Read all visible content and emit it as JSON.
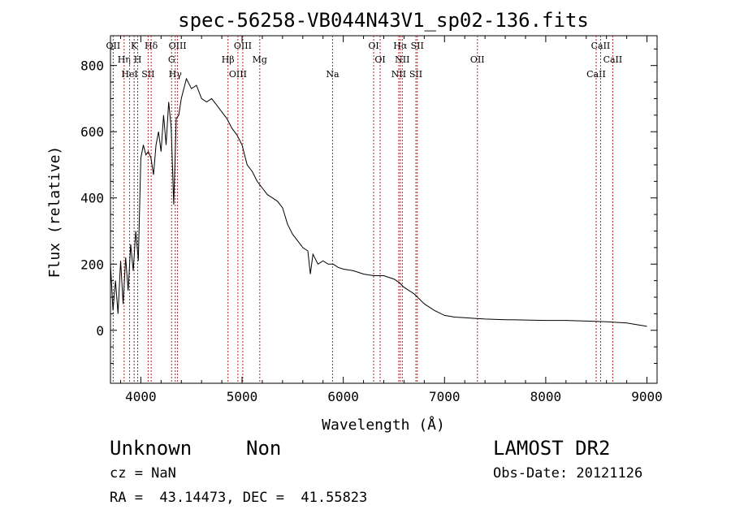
{
  "chart_data": {
    "type": "line",
    "title": "spec-56258-VB044N43V1_sp02-136.fits",
    "xlabel": "Wavelength (Å)",
    "ylabel": "Flux (relative)",
    "xlim": [
      3700,
      9100
    ],
    "ylim": [
      -160,
      890
    ],
    "x_ticks": [
      4000,
      5000,
      6000,
      7000,
      8000,
      9000
    ],
    "y_ticks": [
      0,
      200,
      400,
      600,
      800
    ],
    "x_tick_labels": [
      "4000",
      "5000",
      "6000",
      "7000",
      "8000",
      "9000"
    ],
    "y_tick_labels": [
      "0",
      "200",
      "400",
      "600",
      "800"
    ],
    "grid": false,
    "series": [
      {
        "x": [
          3700,
          3725,
          3750,
          3775,
          3800,
          3825,
          3850,
          3875,
          3900,
          3925,
          3950,
          3975,
          4000,
          4025,
          4050,
          4075,
          4100,
          4125,
          4150,
          4175,
          4200,
          4225,
          4250,
          4275,
          4300,
          4325,
          4350,
          4375,
          4400,
          4450,
          4500,
          4550,
          4600,
          4650,
          4700,
          4750,
          4800,
          4850,
          4900,
          4950,
          5000,
          5050,
          5100,
          5150,
          5200,
          5250,
          5300,
          5350,
          5400,
          5450,
          5500,
          5550,
          5600,
          5650,
          5675,
          5700,
          5750,
          5800,
          5850,
          5900,
          5950,
          6000,
          6100,
          6200,
          6300,
          6400,
          6500,
          6550,
          6600,
          6700,
          6800,
          6900,
          7000,
          7100,
          7200,
          7300,
          7400,
          7600,
          7800,
          8000,
          8200,
          8400,
          8600,
          8800,
          9000
        ],
        "values": [
          200,
          60,
          150,
          50,
          210,
          80,
          220,
          120,
          260,
          180,
          300,
          210,
          520,
          560,
          530,
          540,
          520,
          470,
          560,
          600,
          540,
          650,
          560,
          690,
          610,
          380,
          640,
          650,
          700,
          760,
          730,
          740,
          700,
          690,
          700,
          680,
          660,
          640,
          610,
          590,
          560,
          500,
          480,
          450,
          430,
          410,
          400,
          390,
          370,
          320,
          290,
          270,
          250,
          240,
          170,
          230,
          200,
          210,
          200,
          200,
          190,
          185,
          180,
          170,
          165,
          165,
          155,
          145,
          130,
          110,
          80,
          60,
          45,
          40,
          38,
          36,
          34,
          32,
          31,
          30,
          30,
          28,
          26,
          22,
          12
        ]
      }
    ],
    "line_labels": [
      {
        "x": 3727,
        "labels": [
          "OII"
        ]
      },
      {
        "x": 3835,
        "labels": [
          "Hη"
        ]
      },
      {
        "x": 3889,
        "labels": [
          "HeI"
        ]
      },
      {
        "x": 3934,
        "labels": [
          "K"
        ]
      },
      {
        "x": 3969,
        "labels": [
          "H"
        ]
      },
      {
        "x": 4072,
        "labels": [
          "SII"
        ]
      },
      {
        "x": 4102,
        "labels": [
          "Hδ"
        ]
      },
      {
        "x": 4304,
        "labels": [
          "G"
        ]
      },
      {
        "x": 4340,
        "labels": [
          "Hγ"
        ]
      },
      {
        "x": 4363,
        "labels": [
          "OIII"
        ]
      },
      {
        "x": 4861,
        "labels": [
          "Hβ"
        ]
      },
      {
        "x": 4959,
        "labels": [
          "OIII"
        ]
      },
      {
        "x": 5007,
        "labels": [
          "OIII"
        ]
      },
      {
        "x": 5175,
        "labels": [
          "Mg"
        ]
      },
      {
        "x": 5894,
        "labels": [
          "Na"
        ]
      },
      {
        "x": 6300,
        "labels": [
          "OI"
        ]
      },
      {
        "x": 6364,
        "labels": [
          "OI"
        ]
      },
      {
        "x": 6548,
        "labels": [
          "NII"
        ]
      },
      {
        "x": 6563,
        "labels": [
          "Hα"
        ]
      },
      {
        "x": 6583,
        "labels": [
          "NII"
        ]
      },
      {
        "x": 6717,
        "labels": [
          "SII"
        ]
      },
      {
        "x": 6731,
        "labels": [
          "SII"
        ]
      },
      {
        "x": 7325,
        "labels": [
          "OII"
        ]
      },
      {
        "x": 8498,
        "labels": [
          "CaII"
        ]
      },
      {
        "x": 8542,
        "labels": [
          "CaII"
        ]
      },
      {
        "x": 8662,
        "labels": [
          "CaII"
        ]
      }
    ]
  },
  "info": {
    "object_class": "Unknown",
    "subclass": "Non",
    "survey": "LAMOST DR2",
    "cz": "cz = NaN",
    "obs_date": "Obs-Date: 20121126",
    "coords": "RA =  43.14473, DEC =  41.55823"
  },
  "colors": {
    "spectrum": "#000000",
    "line_markers": "#b22222",
    "background": "#ffffff"
  }
}
